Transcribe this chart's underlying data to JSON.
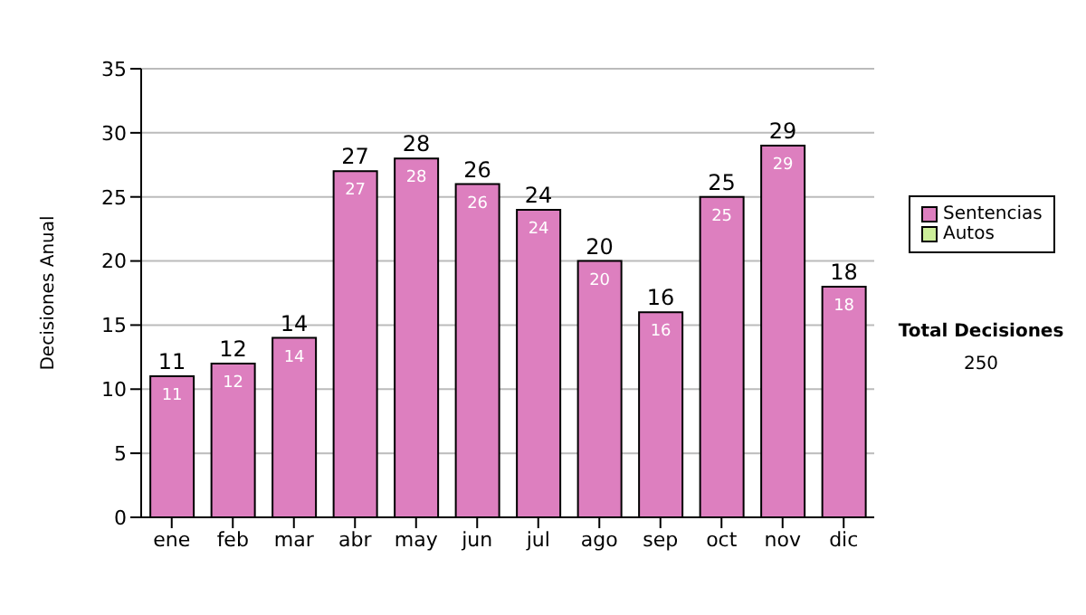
{
  "chart_data": {
    "type": "bar",
    "ylabel": "Decisiones Anual",
    "categories": [
      "ene",
      "feb",
      "mar",
      "abr",
      "may",
      "jun",
      "jul",
      "ago",
      "sep",
      "oct",
      "nov",
      "dic"
    ],
    "stacked": true,
    "series": [
      {
        "name": "Sentencias",
        "color": "#dd7fbf",
        "values": [
          11,
          12,
          14,
          27,
          28,
          26,
          24,
          20,
          16,
          25,
          29,
          18
        ],
        "value_labels": [
          "11",
          "12",
          "14",
          "27",
          "28",
          "26",
          "24",
          "20",
          "16",
          "25",
          "29",
          "18"
        ]
      },
      {
        "name": "Autos",
        "color": "#ccee99",
        "values": [
          0,
          0,
          0,
          0,
          0,
          0,
          0,
          0,
          0,
          0,
          0,
          0
        ]
      }
    ],
    "totals": [
      "11",
      "12",
      "14",
      "27",
      "28",
      "26",
      "24",
      "20",
      "16",
      "25",
      "29",
      "18"
    ],
    "ylim": [
      0,
      35
    ],
    "yticks": [
      0,
      5,
      10,
      15,
      20,
      25,
      30,
      35
    ],
    "grid": "y",
    "legend": "right",
    "annotations": [
      "Total Decisiones",
      "250"
    ]
  }
}
